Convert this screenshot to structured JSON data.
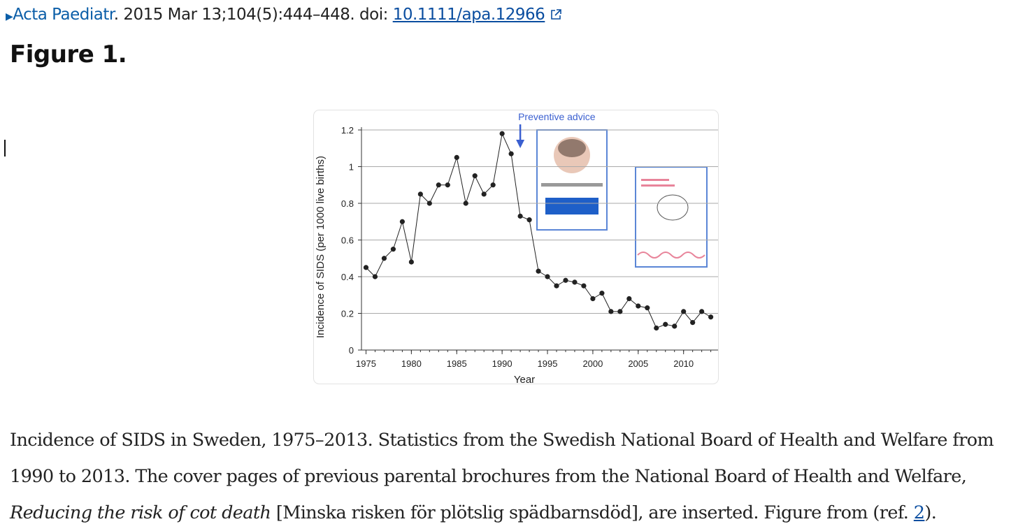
{
  "header": {
    "journal": "Acta Paediatr",
    "citation": ". 2015 Mar 13;104(5):444–448. doi: ",
    "doi": "10.1111/apa.12966"
  },
  "figure_title": "Figure 1.",
  "chart_data": {
    "type": "line",
    "annotation": "Preventive advice",
    "annotation_x": 1992,
    "x_label": "Year",
    "y_label": "Incidence of SIDS (per 1000 live births)",
    "x": [
      1975,
      1976,
      1977,
      1978,
      1979,
      1980,
      1981,
      1982,
      1983,
      1984,
      1985,
      1986,
      1987,
      1988,
      1989,
      1990,
      1991,
      1992,
      1993,
      1994,
      1995,
      1996,
      1997,
      1998,
      1999,
      2000,
      2001,
      2002,
      2003,
      2004,
      2005,
      2006,
      2007,
      2008,
      2009,
      2010,
      2011,
      2012,
      2013
    ],
    "series": [
      {
        "color": "#222222",
        "values": [
          0.45,
          0.4,
          0.5,
          0.55,
          0.7,
          0.48,
          0.85,
          0.8,
          0.9,
          0.9,
          1.05,
          0.8,
          0.95,
          0.85,
          0.9,
          1.18,
          1.07,
          0.73,
          0.71,
          0.43,
          0.4,
          0.35,
          0.38,
          0.37,
          0.35,
          0.28,
          0.31,
          0.21,
          0.21,
          0.28,
          0.24,
          0.23,
          0.12,
          0.14,
          0.13,
          0.21,
          0.15,
          0.21,
          0.18
        ]
      }
    ],
    "xlim": [
      1974.5,
      2013.8
    ],
    "xticks": [
      1975,
      1980,
      1985,
      1990,
      1995,
      2000,
      2005,
      2010
    ],
    "ylim": [
      0,
      1.2
    ],
    "yticks": [
      0,
      0.2,
      0.4,
      0.6,
      0.8,
      1,
      1.2
    ],
    "grid": true,
    "annotation_color": "#3a5fd0"
  },
  "caption": {
    "text1": "Incidence of SIDS in Sweden, 1975–2013. Statistics from the Swedish National Board of Health and Welfare from 1990 to 2013. The cover pages of previous parental brochures from the National Board of Health and Welfare, ",
    "italic": "Reducing the risk of cot death",
    "text2": " [Minska risken för plötslig spädbarnsdöd], are inserted. Figure  from (ref. ",
    "ref": "2",
    "text3": ")."
  }
}
